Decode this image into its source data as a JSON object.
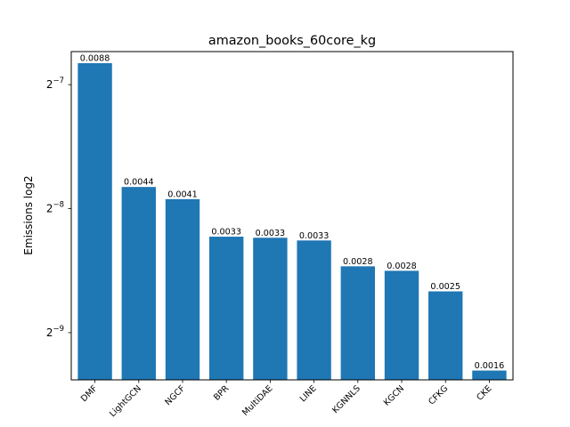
{
  "chart_data": {
    "type": "bar",
    "title": "amazon_books_60core_kg",
    "xlabel": "",
    "ylabel": "Emissions log2",
    "yscale": "log2",
    "ylim": [
      0.0015,
      0.0094
    ],
    "yticks": [
      {
        "value": 0.0078125,
        "base": "2",
        "exp": "−7"
      },
      {
        "value": 0.00390625,
        "base": "2",
        "exp": "−8"
      },
      {
        "value": 0.001953125,
        "base": "2",
        "exp": "−9"
      }
    ],
    "categories": [
      "DMF",
      "LightGCN",
      "NGCF",
      "BPR",
      "MultiDAE",
      "LINE",
      "KGNNLS",
      "KGCN",
      "CFKG",
      "CKE"
    ],
    "values": [
      0.00881,
      0.00441,
      0.00412,
      0.00334,
      0.00332,
      0.00327,
      0.00283,
      0.00276,
      0.00246,
      0.00158
    ],
    "data_labels": [
      "0.0088",
      "0.0044",
      "0.0041",
      "0.0033",
      "0.0033",
      "0.0033",
      "0.0028",
      "0.0028",
      "0.0025",
      "0.0016"
    ],
    "bar_color": "#1f77b4",
    "grid": false,
    "legend": "none"
  }
}
